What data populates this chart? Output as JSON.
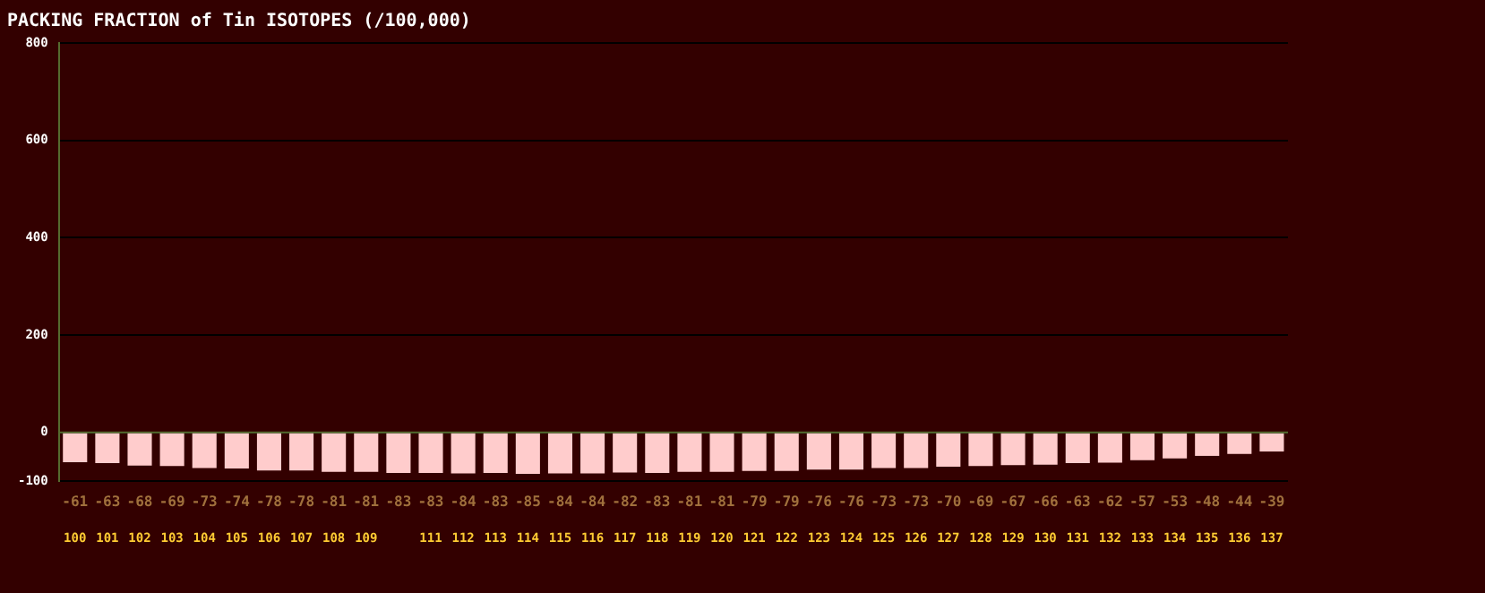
{
  "chart_data": {
    "type": "bar",
    "title": "PACKING FRACTION of Tin ISOTOPES (/100,000)",
    "categories": [
      "100",
      "101",
      "102",
      "103",
      "104",
      "105",
      "106",
      "107",
      "108",
      "109",
      null,
      "111",
      "112",
      "113",
      "114",
      "115",
      "116",
      "117",
      "118",
      "119",
      "120",
      "121",
      "122",
      "123",
      "124",
      "125",
      "126",
      "127",
      "128",
      "129",
      "130",
      "131",
      "132",
      "133",
      "134",
      "135",
      "136",
      "137"
    ],
    "values": [
      -61,
      -63,
      -68,
      -69,
      -73,
      -74,
      -78,
      -78,
      -81,
      -81,
      -83,
      -83,
      -84,
      -83,
      -85,
      -84,
      -84,
      -82,
      -83,
      -81,
      -81,
      -79,
      -79,
      -76,
      -76,
      -73,
      -73,
      -70,
      -69,
      -67,
      -66,
      -63,
      -62,
      -57,
      -53,
      -48,
      -44,
      -39
    ],
    "color": "#ffcccc",
    "ylim": [
      -100,
      800
    ],
    "yticks": [
      -100,
      0,
      200,
      400,
      600,
      800
    ],
    "grid": "y",
    "ref_lines": [
      {
        "axis": "y",
        "value": 0,
        "color": "#556b2f"
      }
    ],
    "data_labels": true,
    "legend": false
  }
}
